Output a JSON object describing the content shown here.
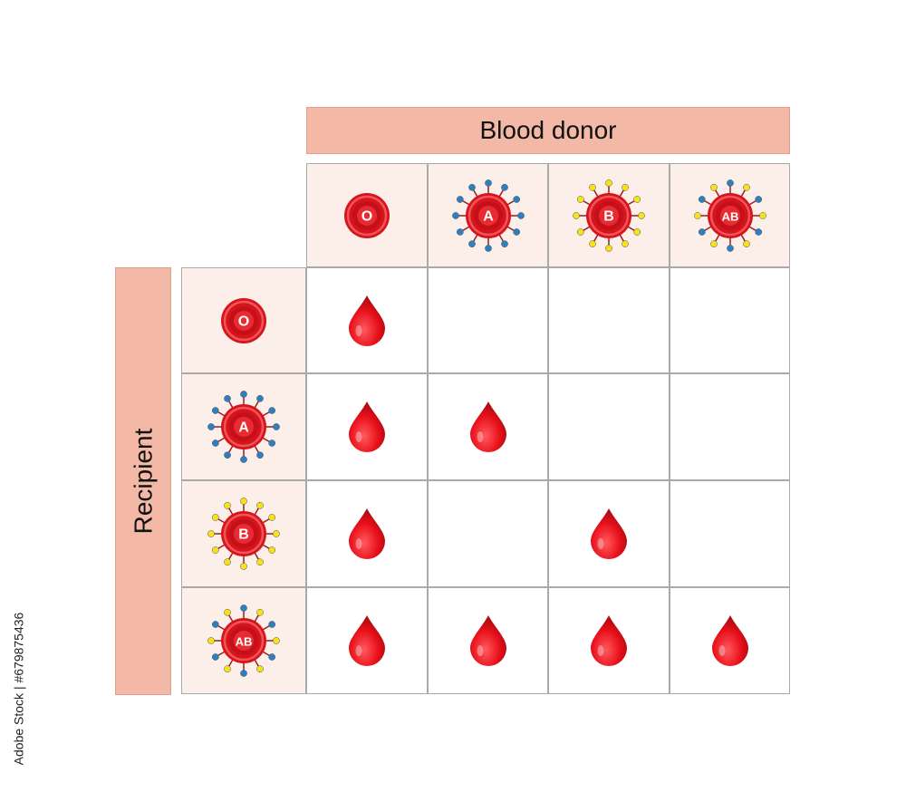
{
  "header": {
    "donor_label": "Blood donor",
    "recipient_label": "Recipient"
  },
  "blood_types": [
    "O",
    "A",
    "B",
    "AB"
  ],
  "compatibility": [
    [
      true,
      false,
      false,
      false
    ],
    [
      true,
      true,
      false,
      false
    ],
    [
      true,
      false,
      true,
      false
    ],
    [
      true,
      true,
      true,
      true
    ]
  ],
  "colors": {
    "banner": "#f3b9a6",
    "header_cell": "#fcefe9",
    "cell_red": "#d7141b",
    "antigen_a": "#2e7fbf",
    "antigen_b": "#f5e21a",
    "drop": "#e8101a"
  },
  "icons": {
    "cell": "red-blood-cell-icon",
    "drop": "blood-drop-icon"
  },
  "watermark": "Adobe Stock | #679875436"
}
